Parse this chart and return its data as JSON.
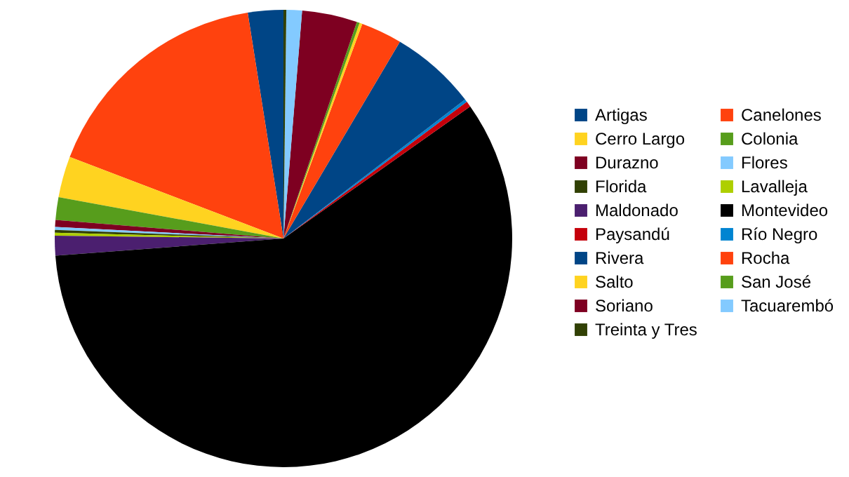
{
  "chart_data": {
    "type": "pie",
    "legend": "right",
    "categories": [
      "Artigas",
      "Canelones",
      "Cerro Largo",
      "Colonia",
      "Durazno",
      "Flores",
      "Florida",
      "Lavalleja",
      "Maldonado",
      "Montevideo",
      "Paysandú",
      "Río Negro",
      "Rivera",
      "Rocha",
      "Salto",
      "San José",
      "Soriano",
      "Tacuarembó",
      "Treinta y Tres"
    ],
    "values": [
      2.5,
      16.7,
      2.9,
      1.6,
      0.5,
      0.2,
      0.2,
      0.2,
      1.4,
      58.6,
      0.4,
      0.2,
      6.1,
      2.9,
      0.2,
      0.2,
      3.9,
      1.1,
      0.2
    ],
    "colors": [
      "#004586",
      "#ff420e",
      "#ffd320",
      "#579d1c",
      "#7e0021",
      "#83caff",
      "#314004",
      "#aecf00",
      "#4b1f6f",
      "#000000",
      "#c5000b",
      "#0084d1",
      "#004586",
      "#ff420e",
      "#ffd320",
      "#579d1c",
      "#7e0021",
      "#83caff",
      "#314004"
    ]
  }
}
